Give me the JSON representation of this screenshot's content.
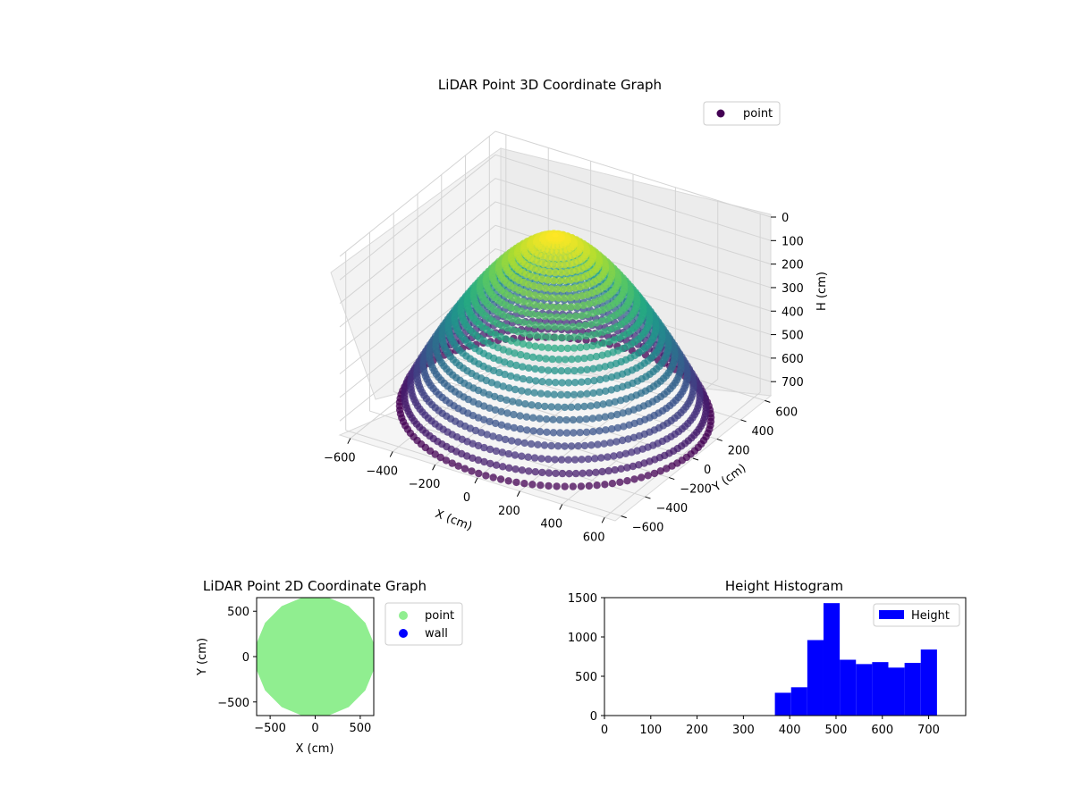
{
  "chart_data": [
    {
      "type": "scatter",
      "projection": "3d",
      "title": "LiDAR Point 3D Coordinate Graph",
      "xlabel": "X (cm)",
      "ylabel": "Y (cm)",
      "zlabel": "H (cm)",
      "xlim": [
        -650,
        650
      ],
      "ylim": [
        -650,
        650
      ],
      "zlim": [
        0,
        760
      ],
      "z_inverted": true,
      "xticks": [
        "−600",
        "−400",
        "−200",
        "0",
        "200",
        "400",
        "600"
      ],
      "yticks": [
        "−600",
        "−400",
        "−200",
        "0",
        "200",
        "400",
        "600"
      ],
      "zticks": [
        "0",
        "100",
        "200",
        "300",
        "400",
        "500",
        "600",
        "700"
      ],
      "colormap": "viridis",
      "legend": {
        "entries": [
          {
            "name": "point",
            "color": "#440154"
          }
        ],
        "placement": "upper-right"
      },
      "series": [
        {
          "name": "point",
          "shape": "bowl",
          "outer_radius_cm": 620,
          "outer_height_cm": 700,
          "center_height_cm": 0
        }
      ]
    },
    {
      "type": "scatter",
      "title": "LiDAR Point 2D Coordinate Graph",
      "xlabel": "X (cm)",
      "ylabel": "Y (cm)",
      "xlim": [
        -650,
        650
      ],
      "ylim": [
        -650,
        650
      ],
      "xticks": [
        "−500",
        "0",
        "500"
      ],
      "yticks": [
        "500",
        "0",
        "−500"
      ],
      "legend": {
        "entries": [
          {
            "name": "point",
            "color": "#90ee90"
          },
          {
            "name": "wall",
            "color": "#0000ff"
          }
        ],
        "placement": "outside-right"
      },
      "series": [
        {
          "name": "point",
          "color": "#90ee90",
          "region": "disc",
          "radius_cm": 650
        },
        {
          "name": "wall",
          "color": "#0000ff",
          "points": []
        }
      ]
    },
    {
      "type": "bar",
      "subtype": "histogram",
      "title": "Height Histogram",
      "xlim": [
        0,
        780
      ],
      "ylim": [
        0,
        1500
      ],
      "xticks": [
        "0",
        "100",
        "200",
        "300",
        "400",
        "500",
        "600",
        "700"
      ],
      "yticks": [
        "0",
        "500",
        "1000",
        "1500"
      ],
      "legend": {
        "entries": [
          {
            "name": "Height",
            "color": "#0000ff"
          }
        ],
        "placement": "upper-right"
      },
      "series": [
        {
          "name": "Height",
          "color": "#0000ff",
          "bin_edges": [
            368,
            403,
            438,
            473,
            508,
            543,
            578,
            613,
            648,
            683,
            718
          ],
          "counts": [
            290,
            360,
            960,
            1430,
            710,
            655,
            680,
            610,
            670,
            840
          ]
        }
      ]
    }
  ]
}
